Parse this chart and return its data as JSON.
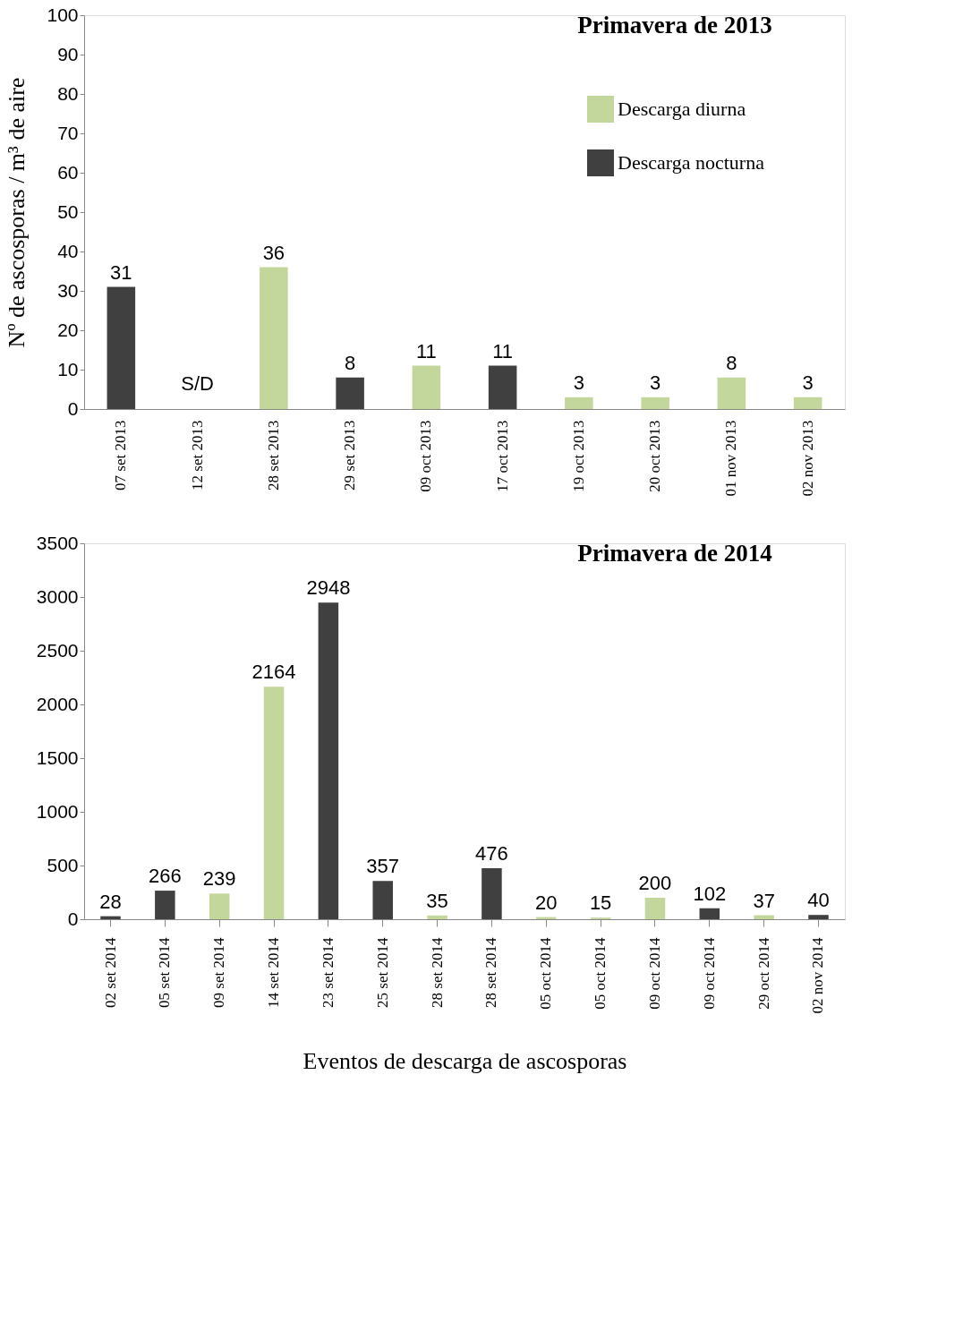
{
  "chart_data": [
    {
      "type": "bar",
      "title": "Primavera de 2013",
      "ylabel": "Nº de ascosporas / m³ de aire",
      "categories": [
        "07 set 2013",
        "12 set 2013",
        "28 set 2013",
        "29 set 2013",
        "09 oct 2013",
        "17 oct 2013",
        "19 oct 2013",
        "20 oct 2013",
        "01 nov 2013",
        "02 nov 2013"
      ],
      "series": [
        {
          "name": "Descarga diurna",
          "color": "#c3d69b",
          "values": [
            null,
            null,
            36,
            null,
            11,
            null,
            3,
            3,
            8,
            3
          ]
        },
        {
          "name": "Descarga nocturna",
          "color": "#404040",
          "values": [
            31,
            null,
            null,
            8,
            null,
            11,
            null,
            null,
            null,
            null
          ]
        }
      ],
      "ylim": [
        0,
        100
      ],
      "yticks": [
        0,
        10,
        20,
        30,
        40,
        50,
        60,
        70,
        80,
        90,
        100
      ],
      "annotations": [
        "S/D"
      ],
      "data_labels": true,
      "legend": "top right",
      "grid": false
    },
    {
      "type": "bar",
      "title": "Primavera de 2014",
      "xlabel": "Eventos de descarga de ascosporas",
      "categories": [
        "02 set 2014",
        "05 set 2014",
        "09 set 2014",
        "14 set 2014",
        "23 set 2014",
        "25 set 2014",
        "28 set 2014",
        "28 set 2014",
        "05 oct 2014",
        "05 oct 2014",
        "09 oct 2014",
        "09 oct 2014",
        "29 oct 2014",
        "02 nov 2014"
      ],
      "series": [
        {
          "name": "Descarga diurna",
          "color": "#c3d69b",
          "values": [
            null,
            null,
            239,
            2164,
            null,
            null,
            35,
            null,
            20,
            15,
            200,
            null,
            37,
            null
          ]
        },
        {
          "name": "Descarga nocturna",
          "color": "#404040",
          "values": [
            28,
            266,
            null,
            null,
            2948,
            357,
            null,
            476,
            null,
            null,
            null,
            102,
            null,
            40
          ]
        }
      ],
      "ylim": [
        0,
        3500
      ],
      "yticks": [
        0,
        500,
        1000,
        1500,
        2000,
        2500,
        3000,
        3500
      ],
      "data_labels": true,
      "legend": false,
      "grid": false
    }
  ]
}
